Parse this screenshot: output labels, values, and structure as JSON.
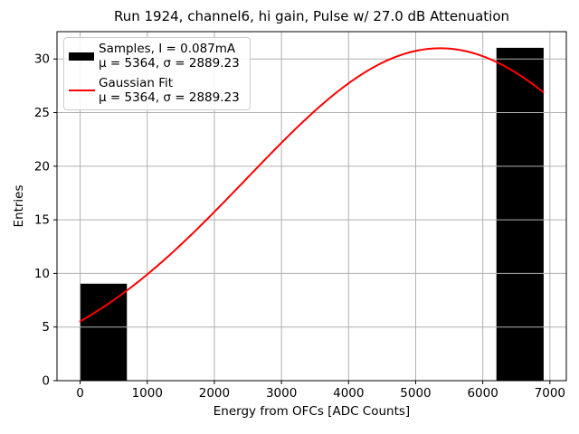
{
  "title": "Run 1924, channel6, hi gain, Pulse w/ 27.0 dB Attenuation",
  "legend": {
    "position": "upper-left",
    "entries": [
      {
        "label": "Samples, I = 0.087mA",
        "stats": "μ = 5364, σ = 2889.23",
        "swatch": "filled-rect",
        "color": "#000000"
      },
      {
        "label": "Gaussian Fit",
        "stats": "μ = 5364, σ = 2889.23",
        "swatch": "line",
        "color": "#ff0000"
      }
    ]
  },
  "chart_data": {
    "type": "bar",
    "subtype": "histogram-with-gaussian-fit",
    "title": "Run 1924, channel6, hi gain, Pulse w/ 27.0 dB Attenuation",
    "xlabel": "Energy from OFCs [ADC Counts]",
    "ylabel": "Entries",
    "xlim": [
      -345,
      7245
    ],
    "ylim": [
      0,
      32.55
    ],
    "xticks": [
      0,
      1000,
      2000,
      3000,
      4000,
      5000,
      6000,
      7000
    ],
    "xtick_labels": [
      "0",
      "1000",
      "2000",
      "3000",
      "4000",
      "5000",
      "6000",
      "7000"
    ],
    "yticks": [
      0,
      5,
      10,
      15,
      20,
      25,
      30
    ],
    "ytick_labels": [
      "0",
      "5",
      "10",
      "15",
      "20",
      "25",
      "30"
    ],
    "grid": true,
    "grid_color": "#b0b0b0",
    "legend_position": "upper left",
    "bars": [
      {
        "x_start": 0,
        "x_end": 690,
        "height": 9
      },
      {
        "x_start": 6210,
        "x_end": 6900,
        "height": 31
      }
    ],
    "bar_color": "#000000",
    "bar_edge_color": "#000000",
    "fit_curve": {
      "shape": "gaussian",
      "mu": 5364,
      "sigma": 2889.23,
      "amplitude": 31,
      "x_range": [
        0,
        6900
      ],
      "color": "#ff0000",
      "line_width": 2
    },
    "spine_color": "#000000",
    "background_color": "#ffffff"
  }
}
